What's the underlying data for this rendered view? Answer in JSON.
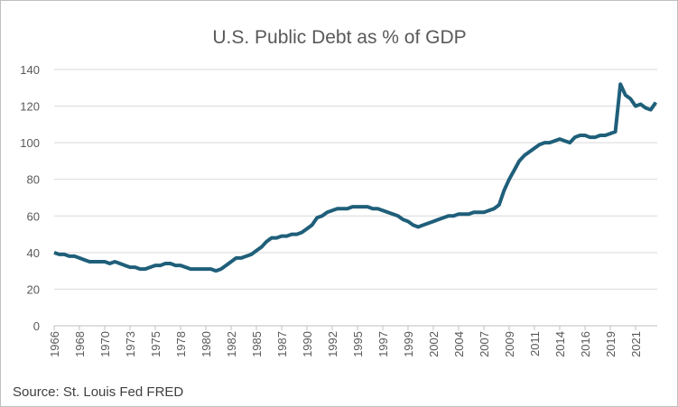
{
  "chart_data": {
    "type": "line",
    "title": "U.S. Public Debt as % of GDP",
    "source": "Source: St. Louis Fed FRED",
    "categories": [
      "1966",
      null,
      null,
      null,
      null,
      "1968",
      null,
      null,
      null,
      null,
      "1970",
      null,
      null,
      null,
      null,
      "1973",
      null,
      null,
      null,
      null,
      "1975",
      null,
      null,
      null,
      null,
      "1978",
      null,
      null,
      null,
      null,
      "1980",
      null,
      null,
      null,
      null,
      "1982",
      null,
      null,
      null,
      null,
      "1985",
      null,
      null,
      null,
      null,
      "1987",
      null,
      null,
      null,
      null,
      "1990",
      null,
      null,
      null,
      null,
      "1992",
      null,
      null,
      null,
      null,
      "1995",
      null,
      null,
      null,
      null,
      "1997",
      null,
      null,
      null,
      null,
      "1999",
      null,
      null,
      null,
      null,
      "2002",
      null,
      null,
      null,
      null,
      "2004",
      null,
      null,
      null,
      null,
      "2007",
      null,
      null,
      null,
      null,
      "2009",
      null,
      null,
      null,
      null,
      "2011",
      null,
      null,
      null,
      null,
      "2014",
      null,
      null,
      null,
      null,
      "2016",
      null,
      null,
      null,
      null,
      "2019",
      null,
      null,
      null,
      null,
      "2021",
      null,
      null,
      null,
      null
    ],
    "values": [
      40,
      39,
      39,
      38,
      38,
      37,
      36,
      35,
      35,
      35,
      35,
      34,
      35,
      34,
      33,
      32,
      32,
      31,
      31,
      32,
      33,
      33,
      34,
      34,
      33,
      33,
      32,
      31,
      31,
      31,
      31,
      31,
      30,
      31,
      33,
      35,
      37,
      37,
      38,
      39,
      41,
      43,
      46,
      48,
      48,
      49,
      49,
      50,
      50,
      51,
      53,
      55,
      59,
      60,
      62,
      63,
      64,
      64,
      64,
      65,
      65,
      65,
      65,
      64,
      64,
      63,
      62,
      61,
      60,
      58,
      57,
      55,
      54,
      55,
      56,
      57,
      58,
      59,
      60,
      60,
      61,
      61,
      61,
      62,
      62,
      62,
      63,
      64,
      66,
      74,
      80,
      85,
      90,
      93,
      95,
      97,
      99,
      100,
      100,
      101,
      102,
      101,
      100,
      103,
      104,
      104,
      103,
      103,
      104,
      104,
      105,
      106,
      132,
      126,
      124,
      120,
      121,
      119,
      118,
      122
    ],
    "color": "#1f5f7a",
    "ylim": [
      0,
      140
    ],
    "yticks": [
      0,
      20,
      40,
      60,
      80,
      100,
      120,
      140
    ],
    "grid": true
  }
}
